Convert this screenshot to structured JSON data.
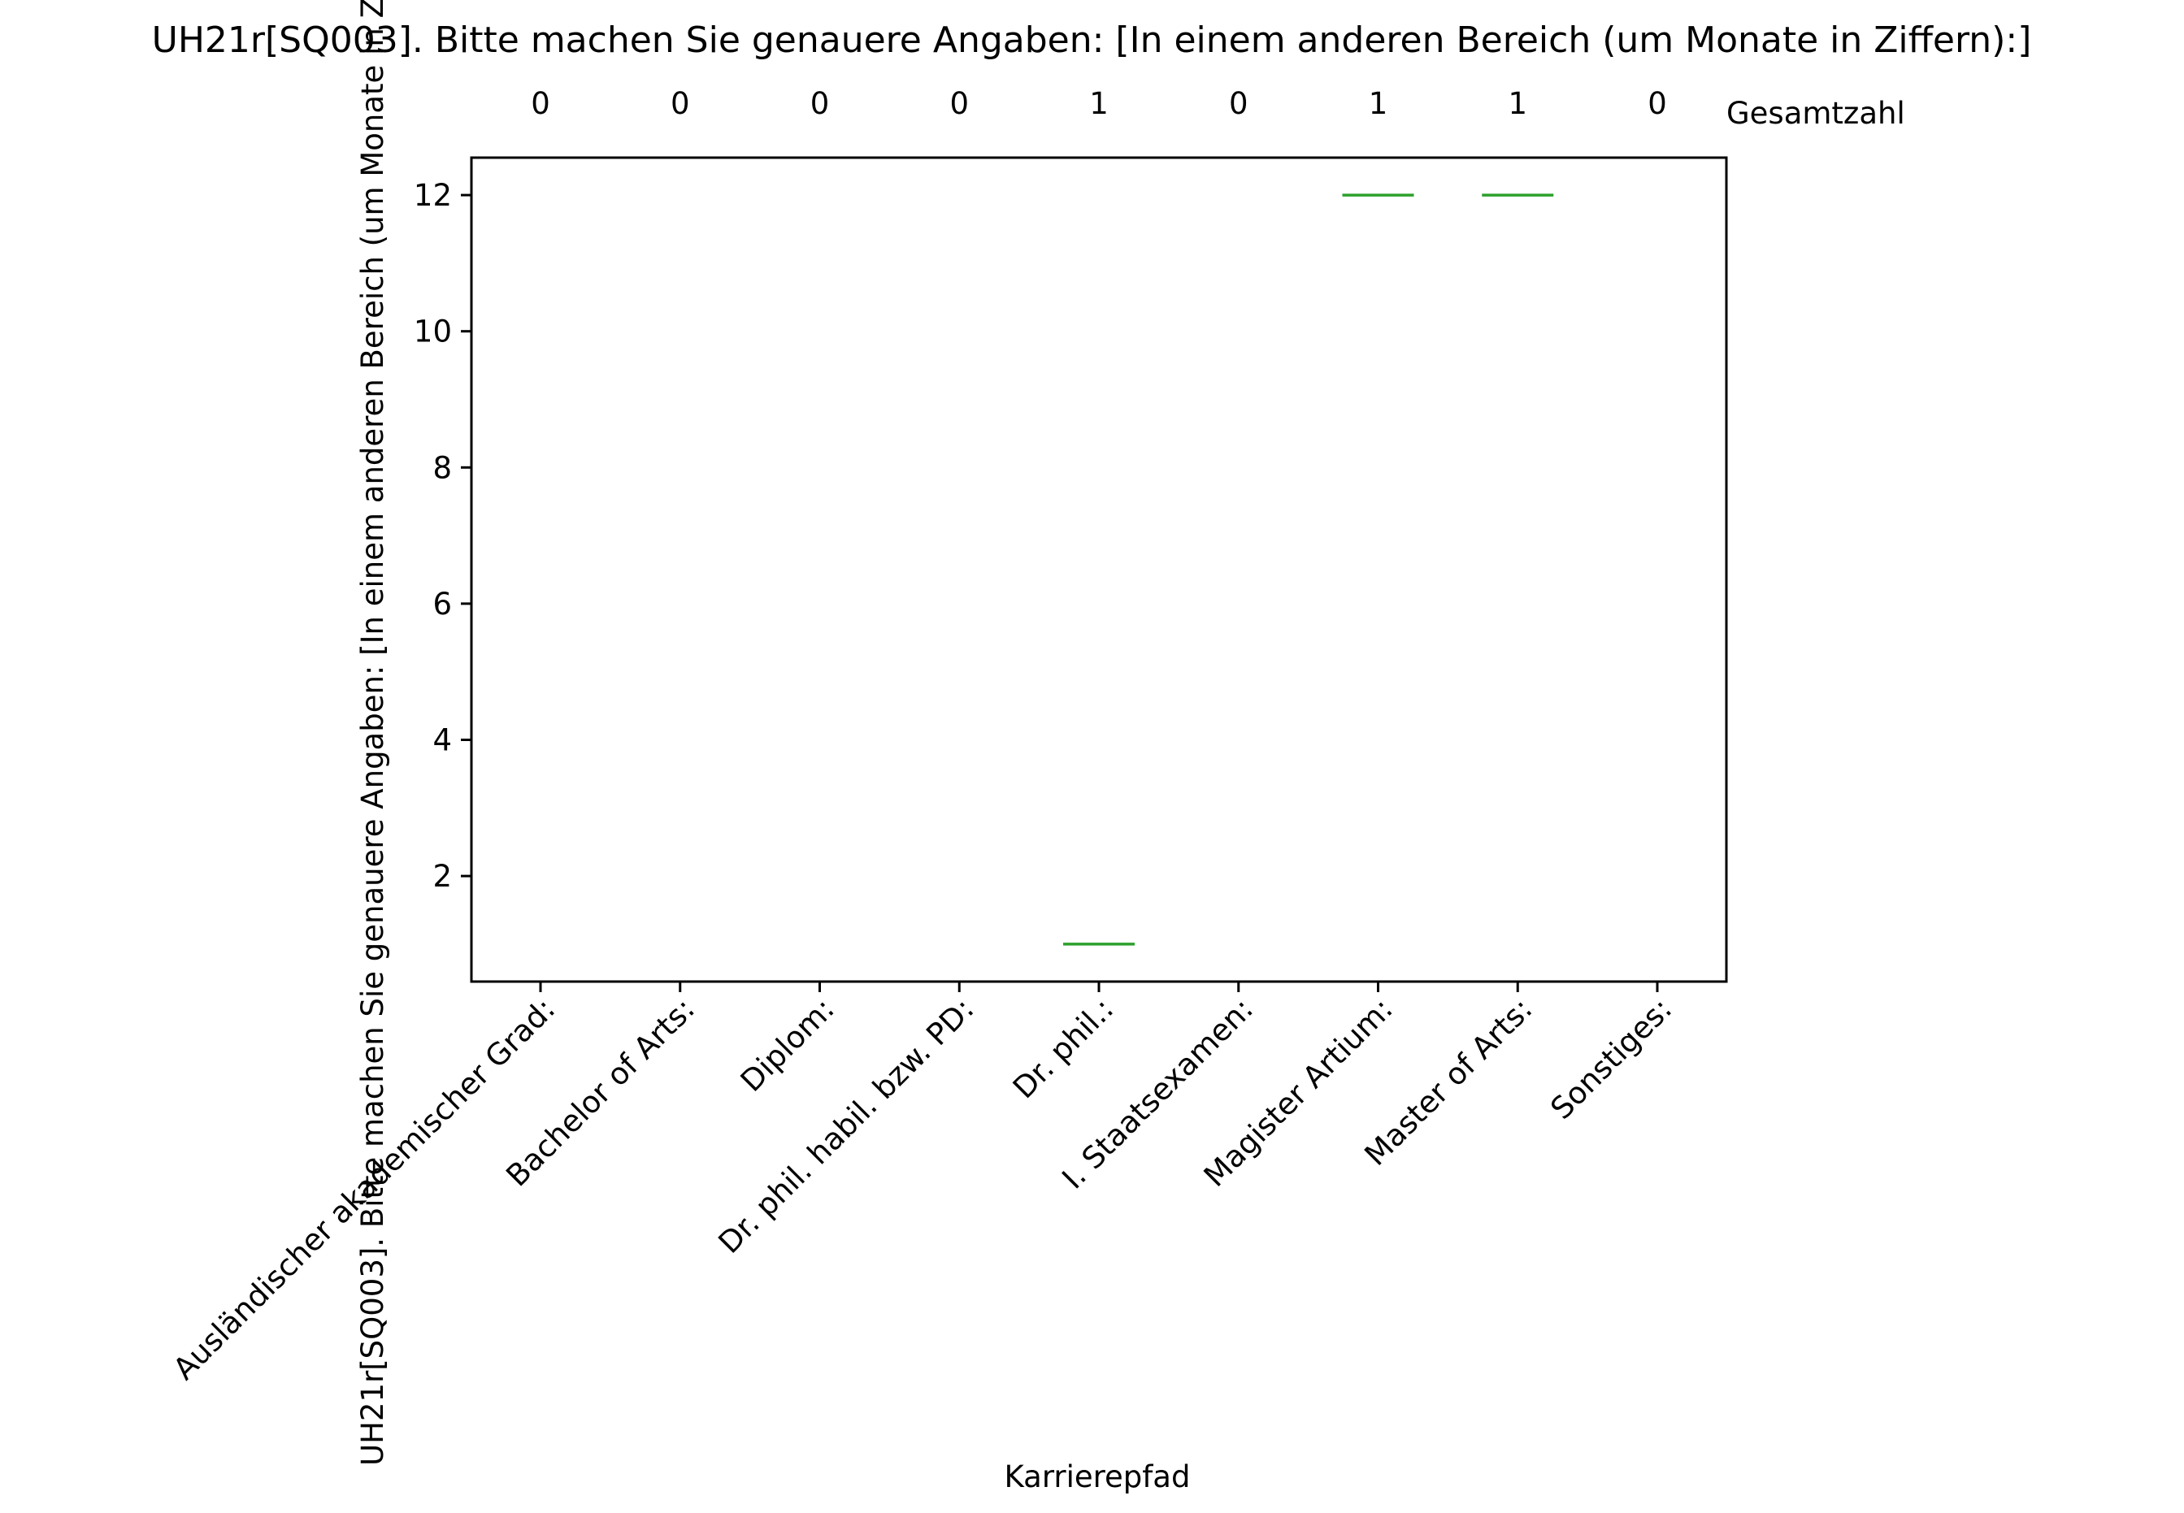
{
  "chart_data": {
    "type": "box",
    "title": "UH21r[SQ003]. Bitte machen Sie genauere Angaben: [In einem anderen Bereich (um Monate in Ziffern):]",
    "xlabel": "Karrierepfad",
    "ylabel": "UH21r[SQ003]. Bitte machen Sie genauere Angaben: [In einem anderen Bereich (um Monate in Ziffern):]",
    "count_label": "Gesamtzahl",
    "categories": [
      "Ausländischer akademischer Grad:",
      "Bachelor of Arts:",
      "Diplom:",
      "Dr. phil. habil. bzw. PD:",
      "Dr. phil.:",
      "I. Staatsexamen:",
      "Magister Artium:",
      "Master of Arts:",
      "Sonstiges:"
    ],
    "counts": [
      "0",
      "0",
      "0",
      "0",
      "1",
      "0",
      "1",
      "1",
      "0"
    ],
    "medians": [
      null,
      null,
      null,
      null,
      1,
      null,
      12,
      12,
      null
    ],
    "ylim": [
      0.45,
      12.55
    ],
    "yticks": [
      2,
      4,
      6,
      8,
      10,
      12
    ],
    "grid": false,
    "colors": {
      "median": "#2ca02c",
      "axes": "#000000"
    }
  }
}
